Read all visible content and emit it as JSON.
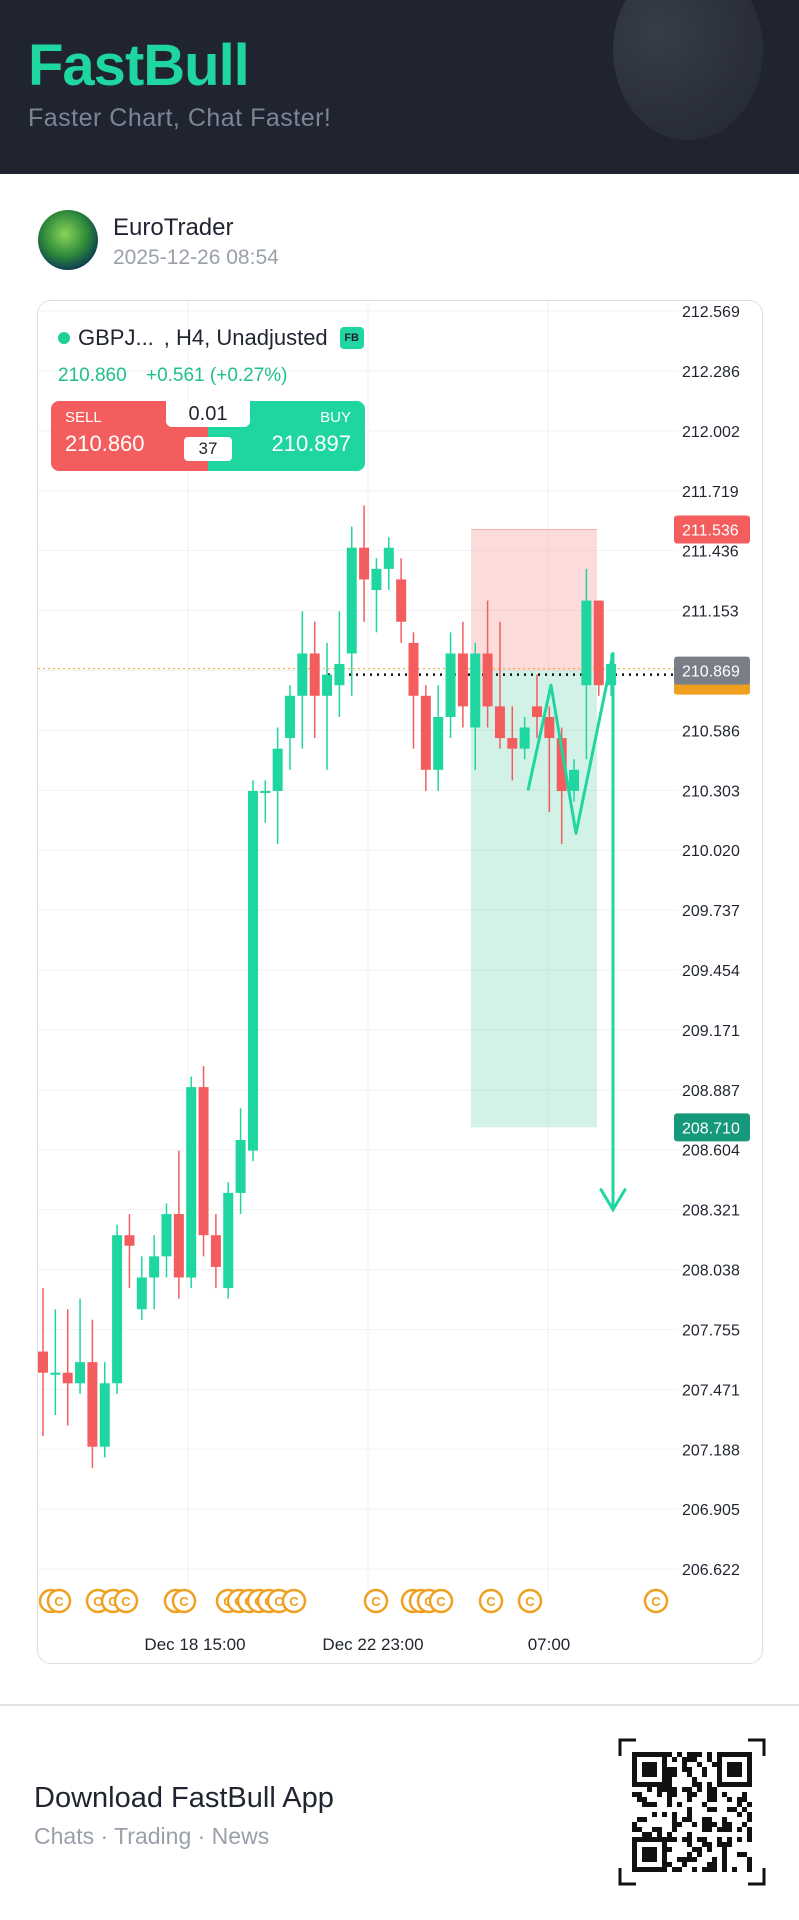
{
  "header": {
    "brand": "FastBull",
    "tagline": "Faster Chart, Chat Faster!"
  },
  "post": {
    "author": "EuroTrader",
    "timestamp": "2025-12-26 08:54"
  },
  "instrument": {
    "symbol": "GBPJ...",
    "meta": ", H4, Unadjusted",
    "badge": "FB",
    "last_price": "210.860",
    "change": "+0.561 (+0.27%)"
  },
  "trade_panel": {
    "sell_label": "SELL",
    "sell_price": "210.860",
    "buy_label": "BUY",
    "buy_price": "210.897",
    "lot_size": "0.01",
    "spread": "37"
  },
  "chart_data": {
    "type": "candlestick",
    "y_ticks": [
      "212.569",
      "212.286",
      "212.002",
      "211.719",
      "211.436",
      "211.153",
      "210.869",
      "210.586",
      "210.303",
      "210.020",
      "209.737",
      "209.454",
      "209.171",
      "208.887",
      "208.604",
      "208.321",
      "208.038",
      "207.755",
      "207.471",
      "207.188",
      "206.905",
      "206.622"
    ],
    "x_ticks": [
      "Dec 18 15:00",
      "Dec 22 23:00",
      "07:00"
    ],
    "price_labels": {
      "stop_loss": "211.536",
      "current": "210.869",
      "take_profit": "208.710"
    },
    "colors": {
      "up": "#1fd6a0",
      "down": "#f35d5d",
      "event": "#f0a020",
      "current_label": "#7a7f87",
      "tp_label": "#15997a"
    },
    "candles": [
      [
        207.65,
        207.95,
        207.25,
        207.55
      ],
      [
        207.55,
        207.85,
        207.35,
        207.55
      ],
      [
        207.55,
        207.85,
        207.3,
        207.5
      ],
      [
        207.5,
        207.9,
        207.45,
        207.6
      ],
      [
        207.6,
        207.8,
        207.1,
        207.2
      ],
      [
        207.2,
        207.6,
        207.15,
        207.5
      ],
      [
        207.5,
        208.25,
        207.45,
        208.2
      ],
      [
        208.2,
        208.3,
        207.95,
        208.15
      ],
      [
        207.85,
        208.1,
        207.8,
        208.0
      ],
      [
        208.0,
        208.2,
        207.85,
        208.1
      ],
      [
        208.1,
        208.35,
        208.0,
        208.3
      ],
      [
        208.3,
        208.6,
        207.9,
        208.0
      ],
      [
        208.0,
        208.95,
        207.95,
        208.9
      ],
      [
        208.9,
        209.0,
        208.1,
        208.2
      ],
      [
        208.2,
        208.3,
        207.95,
        208.05
      ],
      [
        207.95,
        208.45,
        207.9,
        208.4
      ],
      [
        208.4,
        208.8,
        208.3,
        208.65
      ],
      [
        208.6,
        210.35,
        208.55,
        210.3
      ],
      [
        210.3,
        210.35,
        210.15,
        210.3
      ],
      [
        210.3,
        210.6,
        210.05,
        210.5
      ],
      [
        210.55,
        210.8,
        210.4,
        210.75
      ],
      [
        210.75,
        211.15,
        210.5,
        210.95
      ],
      [
        210.95,
        211.1,
        210.55,
        210.75
      ],
      [
        210.75,
        211.0,
        210.4,
        210.85
      ],
      [
        210.8,
        211.15,
        210.65,
        210.9
      ],
      [
        210.95,
        211.55,
        210.75,
        211.45
      ],
      [
        211.45,
        211.65,
        211.1,
        211.3
      ],
      [
        211.25,
        211.4,
        211.05,
        211.35
      ],
      [
        211.35,
        211.5,
        211.25,
        211.45
      ],
      [
        211.3,
        211.4,
        211.0,
        211.1
      ],
      [
        211.0,
        211.05,
        210.5,
        210.75
      ],
      [
        210.75,
        210.8,
        210.3,
        210.4
      ],
      [
        210.4,
        210.8,
        210.3,
        210.65
      ],
      [
        210.65,
        211.05,
        210.55,
        210.95
      ],
      [
        210.95,
        211.1,
        210.6,
        210.7
      ],
      [
        210.6,
        211.0,
        210.4,
        210.95
      ],
      [
        210.95,
        211.2,
        210.6,
        210.7
      ],
      [
        210.7,
        211.1,
        210.5,
        210.55
      ],
      [
        210.55,
        210.7,
        210.35,
        210.5
      ],
      [
        210.5,
        210.65,
        210.45,
        210.6
      ],
      [
        210.7,
        210.85,
        210.55,
        210.65
      ],
      [
        210.65,
        210.7,
        210.2,
        210.55
      ],
      [
        210.55,
        210.6,
        210.05,
        210.3
      ],
      [
        210.3,
        210.45,
        210.25,
        210.4
      ],
      [
        210.8,
        211.35,
        210.45,
        211.2
      ],
      [
        211.2,
        211.2,
        210.75,
        210.8
      ],
      [
        210.8,
        210.95,
        210.75,
        210.9
      ]
    ],
    "forecast_path": [
      210.303,
      210.8,
      210.1,
      210.95,
      208.321
    ]
  },
  "footer": {
    "title": "Download FastBull App",
    "subtitle": "Chats · Trading · News"
  }
}
